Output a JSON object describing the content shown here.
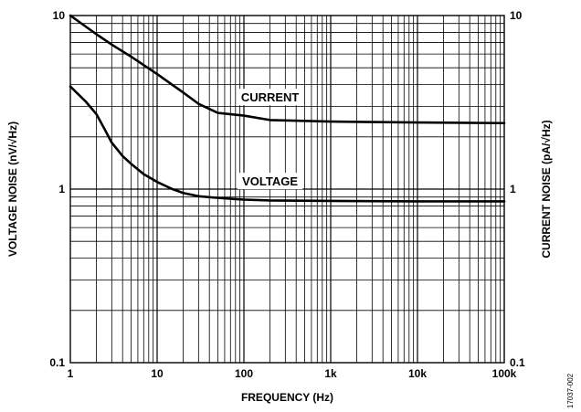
{
  "chart_data": {
    "type": "line",
    "x_scale": "log",
    "y_scale": "log",
    "xlim": [
      1,
      100000
    ],
    "ylim": [
      0.1,
      10
    ],
    "grid": true,
    "xlabel": "FREQUENCY (Hz)",
    "ylabel": "VOLTAGE NOISE (nV/√Hz)",
    "y2label": "CURRENT NOISE (pA/√Hz)",
    "x_ticks": [
      {
        "value": 1,
        "label": "1"
      },
      {
        "value": 10,
        "label": "10"
      },
      {
        "value": 100,
        "label": "100"
      },
      {
        "value": 1000,
        "label": "1k"
      },
      {
        "value": 10000,
        "label": "10k"
      },
      {
        "value": 100000,
        "label": "100k"
      }
    ],
    "y_ticks": [
      {
        "value": 0.1,
        "label": "0.1"
      },
      {
        "value": 1,
        "label": "1"
      },
      {
        "value": 10,
        "label": "10"
      }
    ],
    "y2_ticks": [
      {
        "value": 0.1,
        "label": "0.1"
      },
      {
        "value": 1,
        "label": "1"
      },
      {
        "value": 10,
        "label": "10"
      }
    ],
    "series": [
      {
        "name": "CURRENT",
        "axis": "right",
        "points": [
          [
            1,
            10
          ],
          [
            2,
            7.8
          ],
          [
            3,
            6.8
          ],
          [
            5,
            5.8
          ],
          [
            10,
            4.6
          ],
          [
            20,
            3.6
          ],
          [
            30,
            3.1
          ],
          [
            50,
            2.75
          ],
          [
            100,
            2.65
          ],
          [
            200,
            2.5
          ],
          [
            1000,
            2.45
          ],
          [
            10000,
            2.42
          ],
          [
            100000,
            2.4
          ]
        ]
      },
      {
        "name": "VOLTAGE",
        "axis": "left",
        "points": [
          [
            1,
            3.9
          ],
          [
            1.5,
            3.2
          ],
          [
            2,
            2.7
          ],
          [
            2.5,
            2.2
          ],
          [
            3,
            1.85
          ],
          [
            4,
            1.55
          ],
          [
            5,
            1.4
          ],
          [
            7,
            1.22
          ],
          [
            10,
            1.1
          ],
          [
            15,
            1.0
          ],
          [
            20,
            0.95
          ],
          [
            30,
            0.91
          ],
          [
            50,
            0.89
          ],
          [
            100,
            0.87
          ],
          [
            200,
            0.86
          ],
          [
            1000,
            0.855
          ],
          [
            10000,
            0.85
          ],
          [
            100000,
            0.85
          ]
        ]
      }
    ]
  },
  "figure_id": "17037-002",
  "colors": {
    "line": "#000000",
    "grid": "#000000",
    "background": "#ffffff"
  }
}
